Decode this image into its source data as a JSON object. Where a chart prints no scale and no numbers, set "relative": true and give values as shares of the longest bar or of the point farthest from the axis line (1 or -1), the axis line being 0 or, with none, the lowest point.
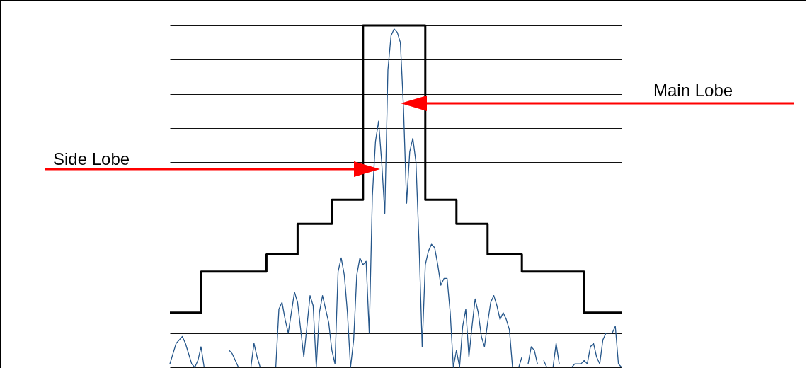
{
  "chart_data": {
    "type": "line",
    "relative": true,
    "grid": "y",
    "categories": [
      null,
      null,
      null,
      null,
      null,
      null,
      null,
      null,
      null,
      null,
      null,
      null,
      null,
      null,
      null,
      null,
      null,
      null,
      null,
      null,
      null,
      null,
      null,
      null,
      null,
      null,
      null,
      null,
      null,
      null,
      null,
      null,
      null,
      null,
      null,
      null,
      null,
      null,
      null,
      null,
      null,
      null,
      null,
      null,
      null,
      null,
      null,
      null,
      null,
      null,
      null,
      null,
      null,
      null,
      null,
      null,
      null,
      null,
      null,
      null,
      null,
      null,
      null,
      null,
      null,
      null,
      null,
      null,
      null,
      null,
      null,
      null,
      null,
      null,
      null,
      null,
      null,
      null,
      null,
      null,
      null,
      null,
      null,
      null,
      null,
      null,
      null,
      null,
      null,
      null,
      null,
      null,
      null,
      null,
      null,
      null,
      null,
      null,
      null,
      null,
      null,
      null,
      null,
      null,
      null,
      null,
      null,
      null,
      null,
      null,
      null,
      null,
      null,
      null,
      null,
      null,
      null,
      null,
      null,
      null,
      null,
      null,
      null,
      null,
      null,
      null,
      null,
      null,
      null,
      null,
      null,
      null,
      null,
      null,
      null,
      null,
      null,
      null,
      null,
      null,
      null,
      null,
      null,
      null,
      null,
      null
    ],
    "annotations": [
      "Main Lobe",
      "Side Lobe"
    ],
    "series": [
      {
        "type": "step",
        "color": "#000000",
        "values": [
          0.16,
          0.16,
          0.16,
          0.16,
          0.16,
          0.16,
          0.16,
          0.16,
          0.16,
          0.16,
          0.28,
          0.28,
          0.28,
          0.28,
          0.28,
          0.28,
          0.28,
          0.28,
          0.28,
          0.28,
          0.28,
          0.28,
          0.28,
          0.28,
          0.28,
          0.28,
          0.28,
          0.28,
          0.28,
          0.28,
          0.28,
          0.33,
          0.33,
          0.33,
          0.33,
          0.33,
          0.33,
          0.33,
          0.33,
          0.33,
          0.33,
          0.42,
          0.42,
          0.42,
          0.42,
          0.42,
          0.42,
          0.42,
          0.42,
          0.42,
          0.42,
          0.42,
          0.49,
          0.49,
          0.49,
          0.49,
          0.49,
          0.49,
          0.49,
          0.49,
          0.49,
          0.49,
          1,
          1,
          1,
          1,
          1,
          1,
          1,
          1,
          1,
          1,
          1,
          1,
          1,
          1,
          1,
          1,
          1,
          1,
          1,
          1,
          0.49,
          0.49,
          0.49,
          0.49,
          0.49,
          0.49,
          0.49,
          0.49,
          0.49,
          0.49,
          0.42,
          0.42,
          0.42,
          0.42,
          0.42,
          0.42,
          0.42,
          0.42,
          0.42,
          0.42,
          0.33,
          0.33,
          0.33,
          0.33,
          0.33,
          0.33,
          0.33,
          0.33,
          0.33,
          0.33,
          0.33,
          0.28,
          0.28,
          0.28,
          0.28,
          0.28,
          0.28,
          0.28,
          0.28,
          0.28,
          0.28,
          0.28,
          0.28,
          0.28,
          0.28,
          0.28,
          0.28,
          0.28,
          0.28,
          0.28,
          0.28,
          0.16,
          0.16,
          0.16,
          0.16,
          0.16,
          0.16,
          0.16,
          0.16,
          0.16,
          0.16,
          0.16,
          0.16,
          0.16
        ]
      },
      {
        "color": "#25568a",
        "values": [
          0.01,
          0.04,
          0.07,
          0.08,
          0.09,
          0.07,
          0.04,
          0.01,
          0,
          0.02,
          0.06,
          0,
          null,
          null,
          null,
          null,
          null,
          null,
          null,
          0.05,
          0.04,
          0.02,
          0,
          null,
          null,
          null,
          0,
          0.07,
          0.03,
          0,
          null,
          null,
          null,
          null,
          0,
          0.17,
          0.19,
          0.14,
          0.1,
          0.16,
          0.22,
          0.19,
          0.11,
          0.03,
          0.12,
          0.21,
          0.18,
          0,
          0.16,
          0.21,
          0.17,
          0.13,
          0.05,
          0.01,
          0.28,
          0.32,
          0.27,
          0.16,
          0,
          0.08,
          0.27,
          0.32,
          0.3,
          0.31,
          0.1,
          0.5,
          0.66,
          0.72,
          0.6,
          0.45,
          0.87,
          0.97,
          0.99,
          0.98,
          0.95,
          0.76,
          0.48,
          0.63,
          0.67,
          0.6,
          0.36,
          0.06,
          0.3,
          0.34,
          0.36,
          0.35,
          0.3,
          0.24,
          0.26,
          0.26,
          0.16,
          0,
          0.05,
          0,
          0.12,
          0.17,
          0.03,
          0.12,
          0.2,
          0.16,
          0.09,
          0.06,
          0.13,
          0.19,
          0.21,
          0.18,
          0.14,
          0.16,
          0.14,
          0.11,
          0,
          null,
          0,
          0.03,
          null,
          0.01,
          0.06,
          0.05,
          0.01,
          null,
          0.02,
          0,
          null,
          0,
          0.07,
          0.01,
          null,
          null,
          null,
          0,
          0.01,
          0.01,
          0.01,
          0.02,
          0.01,
          0.06,
          0.07,
          0.03,
          0.01,
          0.08,
          0.1,
          0.1,
          0.1,
          0.12,
          0.01,
          0
        ]
      }
    ]
  }
}
